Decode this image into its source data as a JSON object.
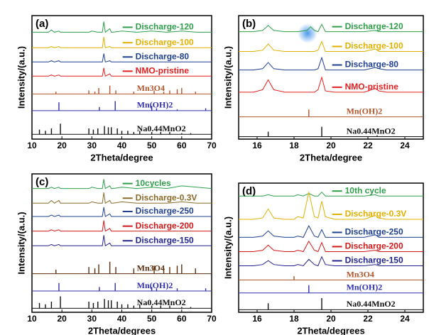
{
  "chart_data": [
    {
      "type": "line",
      "panel_label": "(a)",
      "xlabel": "2Theta/degree",
      "ylabel": "Intensity/(a.u.)",
      "xlim": [
        10,
        70
      ],
      "xticks": [
        10,
        20,
        30,
        40,
        50,
        60,
        70
      ],
      "ylim": [
        0,
        104
      ],
      "x": [
        10,
        13,
        15.5,
        16.5,
        17.5,
        19,
        19.5,
        20,
        25,
        29,
        30,
        32,
        33.5,
        34,
        34.5,
        36,
        36.5,
        37,
        40,
        45,
        50,
        55,
        60,
        65,
        70
      ],
      "series": [
        {
          "name": "Discharge-120",
          "color": "#2e9e4a",
          "values": [
            90,
            90,
            90,
            92,
            90,
            91,
            90,
            90,
            90,
            90,
            91,
            90,
            90,
            99,
            90,
            93,
            90,
            90,
            91,
            90,
            91,
            90,
            91,
            90,
            90
          ]
        },
        {
          "name": "Discharge-100",
          "color": "#e0b000",
          "values": [
            77,
            77,
            77,
            78,
            77,
            78,
            77,
            77,
            77,
            77,
            77,
            77,
            77,
            86,
            77,
            78,
            77,
            77,
            77,
            77,
            77,
            77,
            77,
            77,
            77
          ]
        },
        {
          "name": "Discharge-80",
          "color": "#1f3f8f",
          "values": [
            65,
            65,
            65,
            66,
            65,
            66,
            65,
            65,
            65,
            65,
            65,
            65,
            65,
            72,
            65,
            66,
            65,
            65,
            65,
            65,
            65,
            65,
            65,
            65,
            65
          ]
        },
        {
          "name": "NMO-pristine",
          "color": "#e02020",
          "values": [
            53,
            53,
            53,
            54,
            53,
            54,
            53,
            53,
            53,
            53,
            53,
            53,
            53,
            60,
            53,
            55,
            53,
            53,
            53,
            53,
            53,
            53,
            53,
            53,
            53
          ]
        },
        {
          "name": "Mn3O4",
          "type": "stick",
          "color": "#b0552a",
          "baseline": 38,
          "x": [
            18,
            29,
            31,
            32.3,
            36,
            38,
            44,
            50.8,
            54,
            56,
            58.5,
            60,
            64.6
          ],
          "values": [
            40,
            41,
            40,
            43,
            45,
            41,
            40,
            41,
            40,
            41,
            42,
            43,
            40
          ]
        },
        {
          "name": "Mn(OH)2",
          "type": "stick",
          "color": "#3030b0",
          "baseline": 24,
          "x": [
            19,
            32.5,
            37.8,
            50,
            51.6,
            58.5,
            68
          ],
          "values": [
            31,
            27,
            32,
            28,
            26,
            25,
            26
          ]
        },
        {
          "name": "Na0.44MnO2",
          "type": "stick",
          "color": "#111111",
          "baseline": 4,
          "x": [
            12.5,
            14.5,
            16.5,
            19.5,
            29,
            30.5,
            32,
            34.2,
            35.5,
            36.5,
            38.5,
            40,
            42,
            44,
            46,
            50,
            53,
            56,
            60,
            63
          ],
          "values": [
            8,
            7,
            9,
            13,
            9,
            8,
            9,
            11,
            10,
            10,
            9,
            7,
            7,
            6,
            7,
            6,
            6,
            6,
            5,
            5
          ]
        }
      ]
    },
    {
      "type": "line",
      "panel_label": "(b)",
      "xlabel": "2Theta/degree",
      "ylabel": "Intensity/(a.u.)",
      "xlim": [
        15,
        25
      ],
      "xticks": [
        16,
        18,
        20,
        22,
        24
      ],
      "ylim": [
        0,
        100
      ],
      "x": [
        15,
        15.8,
        16.3,
        16.6,
        16.9,
        17.5,
        18.2,
        18.7,
        18.9,
        19.1,
        19.3,
        19.5,
        19.7,
        20.2,
        21,
        21.8,
        22.4,
        22.6,
        23,
        24,
        25
      ],
      "series": [
        {
          "name": "Discharge-120",
          "color": "#2e9e4a",
          "values": [
            87,
            87,
            88,
            92,
            88,
            87,
            87,
            88,
            91,
            88,
            87,
            93,
            87,
            87,
            87,
            87,
            88,
            87,
            87,
            87,
            87
          ]
        },
        {
          "name": "Discharge-100",
          "color": "#e0b000",
          "values": [
            71,
            71,
            72,
            77,
            72,
            71,
            71,
            71,
            71,
            71,
            72,
            79,
            71,
            71,
            71,
            71,
            73,
            71,
            71,
            71,
            71
          ]
        },
        {
          "name": "Discharge-80",
          "color": "#1f3f8f",
          "values": [
            56,
            56,
            57,
            62,
            57,
            56,
            56,
            56,
            56,
            56,
            57,
            66,
            56,
            56,
            56,
            56,
            58,
            57,
            56,
            56,
            56
          ]
        },
        {
          "name": "NMO-pristine",
          "color": "#e02020",
          "values": [
            38,
            38,
            40,
            48,
            40,
            38,
            38,
            38,
            38,
            38,
            40,
            50,
            39,
            38,
            38,
            38,
            41,
            39,
            38,
            38,
            38
          ]
        },
        {
          "name": "Mn(OH)2",
          "type": "stick",
          "color": "#b0552a",
          "baseline": 18,
          "x": [
            18.8
          ],
          "values": [
            24
          ]
        },
        {
          "name": "Na0.44MnO2",
          "type": "stick",
          "color": "#111111",
          "baseline": 2,
          "x": [
            16.6,
            19.5,
            22.5
          ],
          "values": [
            6,
            10,
            3
          ]
        }
      ]
    },
    {
      "type": "line",
      "panel_label": "(c)",
      "xlabel": "2Theta/degrees",
      "ylabel": "Intensity/(a.u.)",
      "xlim": [
        10,
        70
      ],
      "xticks": [
        10,
        20,
        30,
        40,
        50,
        60,
        70
      ],
      "ylim": [
        0,
        104
      ],
      "x": [
        10,
        13,
        15.5,
        16.5,
        17.5,
        19,
        19.5,
        20,
        25,
        29,
        30,
        32,
        33.5,
        34,
        34.5,
        36,
        36.5,
        37,
        40,
        45,
        50,
        55,
        60,
        65,
        70
      ],
      "series": [
        {
          "name": "10cycles",
          "color": "#2e9e4a",
          "values": [
            93,
            93,
            93,
            94,
            93,
            94,
            93,
            93,
            93,
            93,
            94,
            93,
            93,
            100,
            93,
            95,
            93,
            93,
            94,
            93,
            94,
            93,
            95,
            94,
            93
          ]
        },
        {
          "name": "Discharge-0.3V",
          "color": "#8b6b2a",
          "values": [
            82,
            82,
            82,
            84,
            82,
            84,
            82,
            82,
            82,
            82,
            83,
            82,
            82,
            90,
            82,
            84,
            82,
            82,
            83,
            82,
            82,
            82,
            83,
            82,
            82
          ]
        },
        {
          "name": "Discharge-250",
          "color": "#1f3f8f",
          "values": [
            72,
            72,
            72,
            73,
            72,
            73,
            72,
            72,
            72,
            72,
            72,
            72,
            72,
            79,
            72,
            74,
            72,
            72,
            72,
            72,
            72,
            72,
            72,
            72,
            72
          ]
        },
        {
          "name": "Discharge-200",
          "color": "#d01818",
          "values": [
            61,
            61,
            61,
            62,
            61,
            62,
            61,
            61,
            61,
            61,
            61,
            61,
            61,
            69,
            61,
            63,
            61,
            61,
            61,
            61,
            61,
            61,
            61,
            61,
            61
          ]
        },
        {
          "name": "Discharge-150",
          "color": "#23238f",
          "values": [
            50,
            50,
            50,
            51,
            50,
            51,
            50,
            50,
            50,
            50,
            50,
            50,
            50,
            58,
            50,
            52,
            50,
            50,
            50,
            50,
            50,
            50,
            50,
            50,
            50
          ]
        },
        {
          "name": "Mn3O4",
          "type": "stick",
          "color": "#5a2d0c",
          "baseline": 29,
          "x": [
            18,
            29,
            31,
            32.3,
            36,
            38,
            44,
            50.8,
            54,
            56,
            58.5,
            60,
            64.6
          ],
          "values": [
            32,
            34,
            33,
            36,
            38,
            34,
            33,
            35,
            33,
            34,
            35,
            36,
            33
          ]
        },
        {
          "name": "Mn(OH)2",
          "type": "stick",
          "color": "#3030b0",
          "baseline": 16,
          "x": [
            19,
            32.5,
            37.8,
            50,
            51.6,
            58.5,
            68
          ],
          "values": [
            22,
            19,
            22,
            19,
            18,
            18,
            18
          ]
        },
        {
          "name": "Na0.44MnO2",
          "type": "stick",
          "color": "#111111",
          "baseline": 3,
          "x": [
            12.5,
            14.5,
            16.5,
            19.5,
            29,
            30.5,
            32,
            34.2,
            35.5,
            36.5,
            38.5,
            40,
            42,
            44,
            46,
            50,
            53,
            56,
            60,
            63
          ],
          "values": [
            7,
            6,
            8,
            12,
            8,
            7,
            8,
            10,
            9,
            9,
            8,
            6,
            6,
            5,
            6,
            5,
            5,
            5,
            4,
            4
          ]
        }
      ]
    },
    {
      "type": "line",
      "panel_label": "(d)",
      "xlabel": "2Theta/degrees",
      "ylabel": "Intensity/(a.u.)",
      "xlim": [
        15,
        25
      ],
      "xticks": [
        16,
        18,
        20,
        22,
        24
      ],
      "ylim": [
        0,
        100
      ],
      "x": [
        15,
        15.8,
        16.3,
        16.6,
        16.9,
        17.5,
        18.0,
        18.2,
        18.5,
        18.8,
        19.1,
        19.3,
        19.5,
        19.7,
        20.2,
        21,
        21.8,
        22.4,
        22.6,
        23,
        24,
        25
      ],
      "series": [
        {
          "name": "10th cycle",
          "color": "#2e9e4a",
          "values": [
            90,
            90,
            90,
            91,
            90,
            90,
            90,
            91,
            90,
            92,
            90,
            90,
            93,
            90,
            90,
            90,
            90,
            91,
            90,
            90,
            90,
            90
          ]
        },
        {
          "name": "Discharge-0.3V",
          "color": "#e0b000",
          "values": [
            72,
            72,
            73,
            80,
            73,
            72,
            72,
            74,
            73,
            93,
            74,
            73,
            86,
            74,
            72,
            72,
            72,
            75,
            73,
            72,
            72,
            72
          ]
        },
        {
          "name": "Discharge-250",
          "color": "#1f3f8f",
          "values": [
            58,
            58,
            59,
            63,
            59,
            58,
            58,
            59,
            58,
            67,
            59,
            58,
            64,
            58,
            58,
            58,
            58,
            60,
            58,
            58,
            58,
            58
          ]
        },
        {
          "name": "Discharge-200",
          "color": "#d01818",
          "values": [
            47,
            47,
            48,
            52,
            48,
            47,
            47,
            48,
            47,
            55,
            48,
            47,
            54,
            47,
            47,
            47,
            47,
            48,
            47,
            47,
            47,
            47
          ]
        },
        {
          "name": "Discharge-150",
          "color": "#23238f",
          "values": [
            36,
            36,
            37,
            40,
            37,
            36,
            36,
            37,
            36,
            41,
            37,
            36,
            43,
            37,
            36,
            36,
            36,
            37,
            36,
            36,
            36,
            36
          ]
        },
        {
          "name": "Mn3O4",
          "type": "stick",
          "color": "#b0552a",
          "baseline": 25,
          "x": [
            18.0
          ],
          "values": [
            28
          ]
        },
        {
          "name": "Mn(OH)2",
          "type": "stick",
          "color": "#3030b0",
          "baseline": 15,
          "x": [
            18.8
          ],
          "values": [
            21
          ]
        },
        {
          "name": "Na0.44MnO2",
          "type": "stick",
          "color": "#111111",
          "baseline": 2,
          "x": [
            16.6,
            19.5
          ],
          "values": [
            7,
            11
          ]
        }
      ]
    }
  ]
}
